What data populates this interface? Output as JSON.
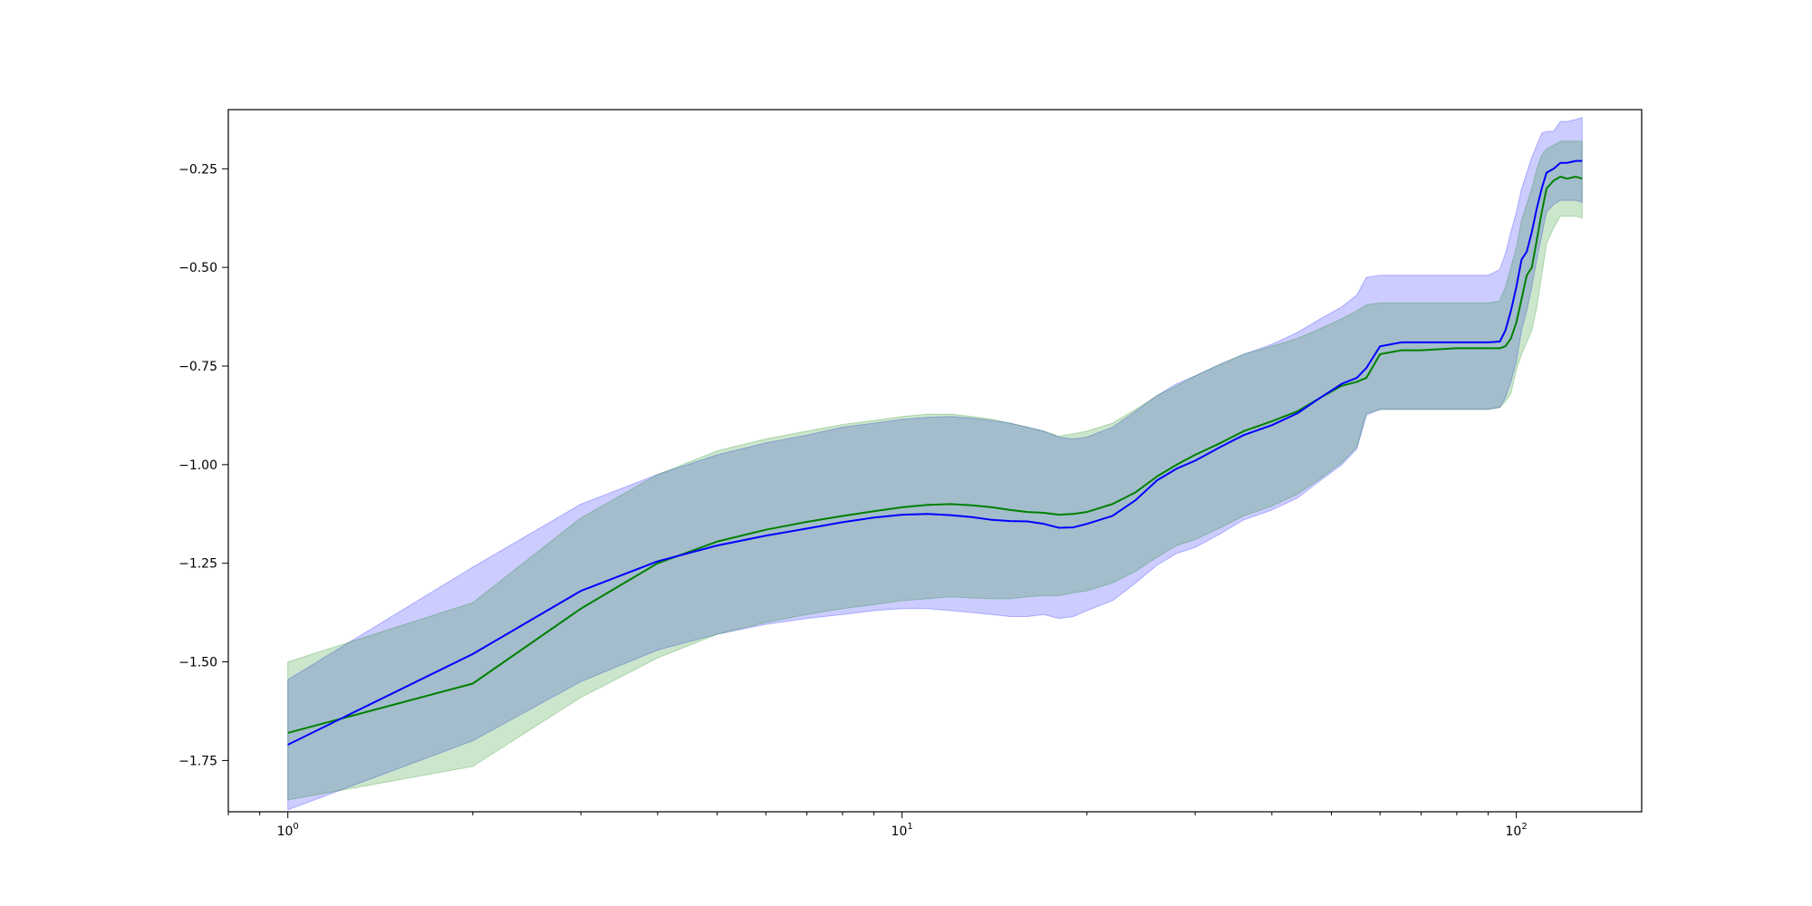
{
  "chart_data": {
    "type": "line",
    "title": "",
    "xlabel": "",
    "ylabel": "",
    "x_scale": "log",
    "xlim": [
      0.8,
      160
    ],
    "ylim": [
      -1.88,
      -0.1
    ],
    "grid": false,
    "legend": "none",
    "x_ticks": [
      {
        "value": 1,
        "base": "10",
        "exp": "0"
      },
      {
        "value": 10,
        "base": "10",
        "exp": "1"
      },
      {
        "value": 100,
        "base": "10",
        "exp": "2"
      }
    ],
    "y_ticks": [
      {
        "value": -0.25,
        "label": "−0.25"
      },
      {
        "value": -0.5,
        "label": "−0.50"
      },
      {
        "value": -0.75,
        "label": "−0.75"
      },
      {
        "value": -1.0,
        "label": "−1.00"
      },
      {
        "value": -1.25,
        "label": "−1.25"
      },
      {
        "value": -1.5,
        "label": "−1.50"
      },
      {
        "value": -1.75,
        "label": "−1.75"
      }
    ],
    "x": [
      1,
      2,
      3,
      4,
      5,
      6,
      7,
      8,
      9,
      10,
      11,
      12,
      13,
      14,
      15,
      16,
      17,
      18,
      19,
      20,
      22,
      24,
      26,
      28,
      30,
      33,
      36,
      40,
      44,
      48,
      52,
      55,
      57,
      60,
      65,
      70,
      80,
      90,
      94,
      96,
      98,
      100,
      102,
      104,
      106,
      108,
      110,
      112,
      115,
      118,
      121,
      125,
      128
    ],
    "series": [
      {
        "color": "#0000ff",
        "band_color": "#0000ff",
        "band_opacity": 0.2,
        "values": [
          -1.71,
          -1.48,
          -1.32,
          -1.245,
          -1.205,
          -1.18,
          -1.162,
          -1.146,
          -1.134,
          -1.127,
          -1.125,
          -1.128,
          -1.133,
          -1.14,
          -1.143,
          -1.144,
          -1.15,
          -1.16,
          -1.159,
          -1.15,
          -1.13,
          -1.09,
          -1.04,
          -1.01,
          -0.99,
          -0.955,
          -0.925,
          -0.9,
          -0.87,
          -0.83,
          -0.795,
          -0.78,
          -0.755,
          -0.7,
          -0.69,
          -0.69,
          -0.69,
          -0.69,
          -0.688,
          -0.66,
          -0.61,
          -0.55,
          -0.48,
          -0.46,
          -0.41,
          -0.35,
          -0.3,
          -0.26,
          -0.25,
          -0.235,
          -0.235,
          -0.23,
          -0.23
        ],
        "lower": [
          -1.875,
          -1.7,
          -1.55,
          -1.47,
          -1.43,
          -1.405,
          -1.39,
          -1.38,
          -1.37,
          -1.365,
          -1.365,
          -1.37,
          -1.375,
          -1.38,
          -1.385,
          -1.385,
          -1.38,
          -1.39,
          -1.385,
          -1.37,
          -1.345,
          -1.3,
          -1.255,
          -1.225,
          -1.21,
          -1.175,
          -1.14,
          -1.115,
          -1.085,
          -1.04,
          -1.0,
          -0.96,
          -0.875,
          -0.86,
          -0.86,
          -0.86,
          -0.86,
          -0.86,
          -0.855,
          -0.83,
          -0.79,
          -0.74,
          -0.66,
          -0.61,
          -0.55,
          -0.48,
          -0.42,
          -0.36,
          -0.34,
          -0.33,
          -0.33,
          -0.33,
          -0.335
        ],
        "upper": [
          -1.545,
          -1.26,
          -1.1,
          -1.025,
          -0.975,
          -0.945,
          -0.925,
          -0.905,
          -0.895,
          -0.885,
          -0.88,
          -0.878,
          -0.882,
          -0.888,
          -0.895,
          -0.905,
          -0.915,
          -0.93,
          -0.935,
          -0.93,
          -0.905,
          -0.865,
          -0.825,
          -0.795,
          -0.775,
          -0.745,
          -0.72,
          -0.695,
          -0.665,
          -0.63,
          -0.6,
          -0.57,
          -0.525,
          -0.52,
          -0.52,
          -0.52,
          -0.52,
          -0.52,
          -0.505,
          -0.465,
          -0.41,
          -0.36,
          -0.3,
          -0.26,
          -0.22,
          -0.19,
          -0.16,
          -0.155,
          -0.155,
          -0.13,
          -0.13,
          -0.125,
          -0.12
        ]
      },
      {
        "color": "#008000",
        "band_color": "#008000",
        "band_opacity": 0.2,
        "values": [
          -1.68,
          -1.555,
          -1.365,
          -1.25,
          -1.195,
          -1.165,
          -1.145,
          -1.13,
          -1.118,
          -1.108,
          -1.102,
          -1.1,
          -1.103,
          -1.108,
          -1.115,
          -1.12,
          -1.122,
          -1.127,
          -1.125,
          -1.12,
          -1.1,
          -1.07,
          -1.03,
          -1.0,
          -0.975,
          -0.945,
          -0.915,
          -0.89,
          -0.865,
          -0.83,
          -0.8,
          -0.79,
          -0.78,
          -0.72,
          -0.71,
          -0.71,
          -0.705,
          -0.705,
          -0.705,
          -0.7,
          -0.68,
          -0.64,
          -0.58,
          -0.52,
          -0.5,
          -0.43,
          -0.36,
          -0.3,
          -0.28,
          -0.27,
          -0.275,
          -0.27,
          -0.275
        ],
        "lower": [
          -1.85,
          -1.765,
          -1.59,
          -1.49,
          -1.43,
          -1.4,
          -1.38,
          -1.365,
          -1.355,
          -1.345,
          -1.34,
          -1.335,
          -1.338,
          -1.34,
          -1.34,
          -1.335,
          -1.332,
          -1.332,
          -1.325,
          -1.32,
          -1.3,
          -1.27,
          -1.235,
          -1.205,
          -1.19,
          -1.16,
          -1.13,
          -1.105,
          -1.075,
          -1.035,
          -0.995,
          -0.955,
          -0.87,
          -0.86,
          -0.86,
          -0.86,
          -0.86,
          -0.86,
          -0.855,
          -0.84,
          -0.82,
          -0.76,
          -0.72,
          -0.69,
          -0.66,
          -0.6,
          -0.52,
          -0.44,
          -0.4,
          -0.37,
          -0.37,
          -0.37,
          -0.375
        ],
        "upper": [
          -1.5,
          -1.35,
          -1.135,
          -1.025,
          -0.965,
          -0.935,
          -0.915,
          -0.898,
          -0.888,
          -0.878,
          -0.872,
          -0.872,
          -0.878,
          -0.885,
          -0.895,
          -0.905,
          -0.915,
          -0.928,
          -0.922,
          -0.915,
          -0.895,
          -0.86,
          -0.825,
          -0.8,
          -0.775,
          -0.745,
          -0.72,
          -0.7,
          -0.68,
          -0.655,
          -0.63,
          -0.61,
          -0.595,
          -0.59,
          -0.59,
          -0.59,
          -0.59,
          -0.59,
          -0.585,
          -0.55,
          -0.5,
          -0.45,
          -0.38,
          -0.34,
          -0.3,
          -0.25,
          -0.215,
          -0.2,
          -0.19,
          -0.18,
          -0.18,
          -0.18,
          -0.18
        ]
      }
    ]
  }
}
